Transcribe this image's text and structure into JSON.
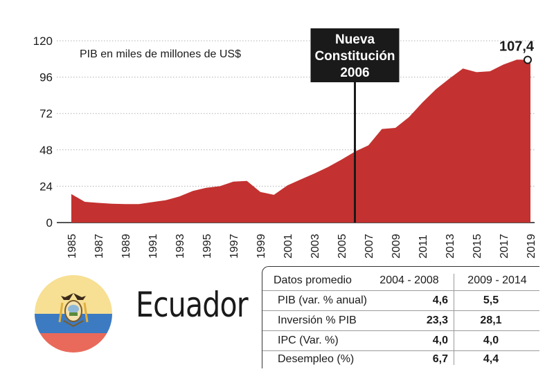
{
  "chart_data": {
    "type": "area",
    "title": "",
    "subtitle": "PIB en miles de millones de US$",
    "xlabel": "",
    "ylabel": "",
    "x": [
      1985,
      1986,
      1987,
      1988,
      1989,
      1990,
      1991,
      1992,
      1993,
      1994,
      1995,
      1996,
      1997,
      1998,
      1999,
      2000,
      2001,
      2002,
      2003,
      2004,
      2005,
      2006,
      2007,
      2008,
      2009,
      2010,
      2011,
      2012,
      2013,
      2014,
      2015,
      2016,
      2017,
      2018,
      2019
    ],
    "values": [
      18.8,
      13.7,
      13.0,
      12.4,
      12.2,
      12.2,
      13.5,
      14.8,
      17.2,
      20.9,
      23.0,
      24.0,
      27.0,
      27.5,
      20.2,
      18.3,
      24.5,
      28.5,
      32.4,
      36.6,
      41.5,
      46.8,
      51.0,
      61.8,
      62.5,
      69.6,
      79.3,
      88.0,
      95.1,
      101.7,
      99.3,
      99.9,
      104.3,
      107.6,
      107.4
    ],
    "ylim": [
      0,
      120
    ],
    "yticks": [
      0,
      24,
      48,
      72,
      96,
      120
    ],
    "xticks": [
      "1985",
      "1987",
      "1989",
      "1991",
      "1993",
      "1995",
      "1997",
      "1999",
      "2001",
      "2003",
      "2005",
      "2007",
      "2009",
      "2011",
      "2013",
      "2015",
      "2017",
      "2019"
    ],
    "end_label": "107,4",
    "annotation": {
      "year": 2006,
      "lines": [
        "Nueva",
        "Constitución",
        "2006"
      ]
    },
    "grid": true,
    "colors": {
      "area": "#c33230",
      "annotation_bg": "#1a1a1a",
      "grid": "#b0b0b0"
    }
  },
  "country": {
    "name": "Ecuador"
  },
  "flag": {
    "icon": "ecuador-flag-icon",
    "colors": [
      "#f7df93",
      "#3c7bc2",
      "#e96a5a"
    ]
  },
  "stats": {
    "header": {
      "label": "Datos promedio",
      "period1": "2004 - 2008",
      "period2": "2009 - 2014"
    },
    "rows": [
      {
        "label": "PIB (var. % anual)",
        "v1": "4,6",
        "v2": "5,5"
      },
      {
        "label": "Inversión % PIB",
        "v1": "23,3",
        "v2": "28,1"
      },
      {
        "label": "IPC (Var. %)",
        "v1": "4,0",
        "v2": "4,0"
      },
      {
        "label": "Desempleo (%)",
        "v1": "6,7",
        "v2": "4,4"
      }
    ]
  }
}
